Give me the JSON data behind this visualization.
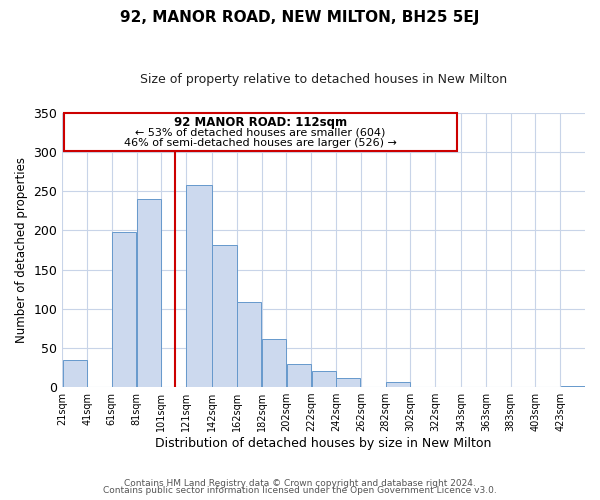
{
  "title": "92, MANOR ROAD, NEW MILTON, BH25 5EJ",
  "subtitle": "Size of property relative to detached houses in New Milton",
  "xlabel": "Distribution of detached houses by size in New Milton",
  "ylabel": "Number of detached properties",
  "bar_color": "#ccd9ee",
  "bar_edge_color": "#6699cc",
  "vline_x": 112,
  "vline_color": "#cc0000",
  "annotation_title": "92 MANOR ROAD: 112sqm",
  "annotation_line1": "← 53% of detached houses are smaller (604)",
  "annotation_line2": "46% of semi-detached houses are larger (526) →",
  "categories": [
    "21sqm",
    "41sqm",
    "61sqm",
    "81sqm",
    "101sqm",
    "121sqm",
    "142sqm",
    "162sqm",
    "182sqm",
    "202sqm",
    "222sqm",
    "242sqm",
    "262sqm",
    "282sqm",
    "302sqm",
    "322sqm",
    "343sqm",
    "363sqm",
    "383sqm",
    "403sqm",
    "423sqm"
  ],
  "values": [
    35,
    0,
    198,
    240,
    0,
    258,
    182,
    109,
    61,
    30,
    20,
    11,
    0,
    6,
    0,
    0,
    0,
    0,
    0,
    0,
    2
  ],
  "bin_lefts": [
    21,
    41,
    61,
    81,
    101,
    121,
    142,
    162,
    182,
    202,
    222,
    242,
    262,
    282,
    302,
    322,
    343,
    363,
    383,
    403,
    423
  ],
  "bin_rights": [
    41,
    61,
    81,
    101,
    121,
    142,
    162,
    182,
    202,
    222,
    242,
    262,
    282,
    302,
    322,
    343,
    363,
    383,
    403,
    423,
    443
  ],
  "xlim_left": 21,
  "xlim_right": 443,
  "ylim": [
    0,
    350
  ],
  "yticks": [
    0,
    50,
    100,
    150,
    200,
    250,
    300,
    350
  ],
  "footer1": "Contains HM Land Registry data © Crown copyright and database right 2024.",
  "footer2": "Contains public sector information licensed under the Open Government Licence v3.0."
}
